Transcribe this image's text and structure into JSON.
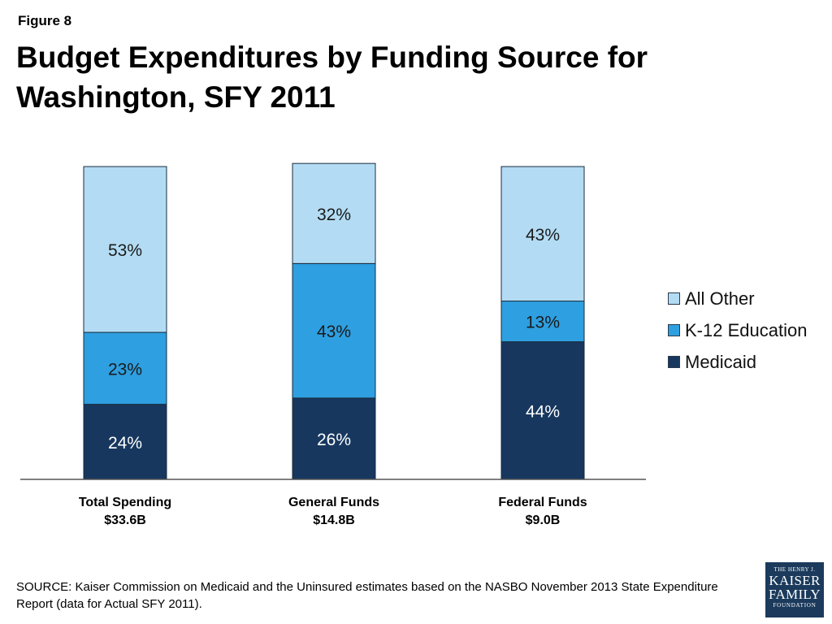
{
  "figure_label": "Figure 8",
  "title": "Budget Expenditures by Funding Source for Washington, SFY 2011",
  "source": "SOURCE: Kaiser Commission on Medicaid and the Uninsured estimates based on the NASBO November 2013 State Expenditure Report (data for Actual SFY 2011).",
  "logo": {
    "line1": "THE HENRY J.",
    "line2": "KAISER",
    "line3": "FAMILY",
    "line4": "FOUNDATION"
  },
  "chart_data": {
    "type": "bar",
    "stacked": true,
    "categories": [
      "Total Spending",
      "General Funds",
      "Federal Funds"
    ],
    "category_amounts": [
      "$33.6B",
      "$14.8B",
      "$9.0B"
    ],
    "series": [
      {
        "name": "Medicaid",
        "values": [
          24,
          26,
          44
        ],
        "labels": [
          "24%",
          "26%",
          "44%"
        ],
        "color": "#17375e"
      },
      {
        "name": "K-12 Education",
        "values": [
          23,
          43,
          13
        ],
        "labels": [
          "23%",
          "43%",
          "13%"
        ],
        "color": "#2e9fe0"
      },
      {
        "name": "All Other",
        "values": [
          53,
          32,
          43
        ],
        "labels": [
          "53%",
          "32%",
          "43%"
        ],
        "color": "#b3dcf4"
      }
    ],
    "ylim": [
      0,
      100
    ],
    "legend_position": "right",
    "legend_order": [
      "All Other",
      "K-12 Education",
      "Medicaid"
    ],
    "grid": false
  }
}
